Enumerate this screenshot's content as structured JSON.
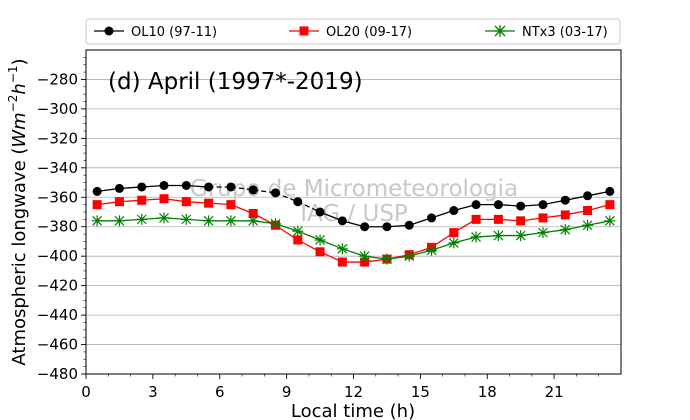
{
  "chart_data": {
    "type": "line",
    "panel_title": "(d) April (1997*-2019)",
    "watermark": [
      "Grupo de Micrometeorologia",
      "IAG / USP"
    ],
    "xlabel": "Local time (h)",
    "ylabel_main": "Atmospheric longwave (",
    "ylabel_unit_W": "W",
    "ylabel_unit_m": "m",
    "ylabel_exp1": "−2",
    "ylabel_unit_h": "h",
    "ylabel_exp2": "−1",
    "ylabel_close": ")",
    "xlim": [
      0,
      24
    ],
    "ylim": [
      -480,
      -260
    ],
    "x_ticks": [
      0,
      3,
      6,
      9,
      12,
      15,
      18,
      21
    ],
    "x_tick_labels": [
      "0",
      "3",
      "6",
      "9",
      "12",
      "15",
      "18",
      "21"
    ],
    "y_ticks": [
      -480,
      -460,
      -440,
      -420,
      -400,
      -380,
      -360,
      -340,
      -320,
      -300,
      -280
    ],
    "y_tick_labels": [
      "−480",
      "−460",
      "−440",
      "−420",
      "−400",
      "−380",
      "−360",
      "−340",
      "−320",
      "−300",
      "−280"
    ],
    "grid": "horizontal",
    "legend_position": "top (outside plot)",
    "x": [
      0.5,
      1.5,
      2.5,
      3.5,
      4.5,
      5.5,
      6.5,
      7.5,
      8.5,
      9.5,
      10.5,
      11.5,
      12.5,
      13.5,
      14.5,
      15.5,
      16.5,
      17.5,
      18.5,
      19.5,
      20.5,
      21.5,
      22.5,
      23.5
    ],
    "series": [
      {
        "name": "OL10 (97-11)",
        "color": "#000000",
        "marker": "circle",
        "dashed_segments": [
          [
            5,
            10
          ]
        ],
        "values": [
          -356,
          -354,
          -353,
          -352,
          -352,
          -353,
          -353,
          -355,
          -357,
          -363,
          -370,
          -376,
          -380,
          -380,
          -379,
          -374,
          -369,
          -365,
          -365,
          -366,
          -365,
          -362,
          -359,
          -356
        ]
      },
      {
        "name": "OL20 (09-17)",
        "color": "#ff0000",
        "marker": "square",
        "values": [
          -365,
          -363,
          -362,
          -361,
          -363,
          -364,
          -365,
          -371,
          -379,
          -389,
          -397,
          -404,
          -404,
          -402,
          -399,
          -394,
          -384,
          -375,
          -375,
          -376,
          -374,
          -372,
          -369,
          -365
        ]
      },
      {
        "name": "NTx3 (03-17)",
        "color": "#008000",
        "marker": "x",
        "values": [
          -376,
          -376,
          -375,
          -374,
          -375,
          -376,
          -376,
          -376,
          -378,
          -383,
          -389,
          -395,
          -400,
          -402,
          -400,
          -396,
          -391,
          -387,
          -386,
          -386,
          -384,
          -382,
          -379,
          -376
        ]
      }
    ]
  }
}
